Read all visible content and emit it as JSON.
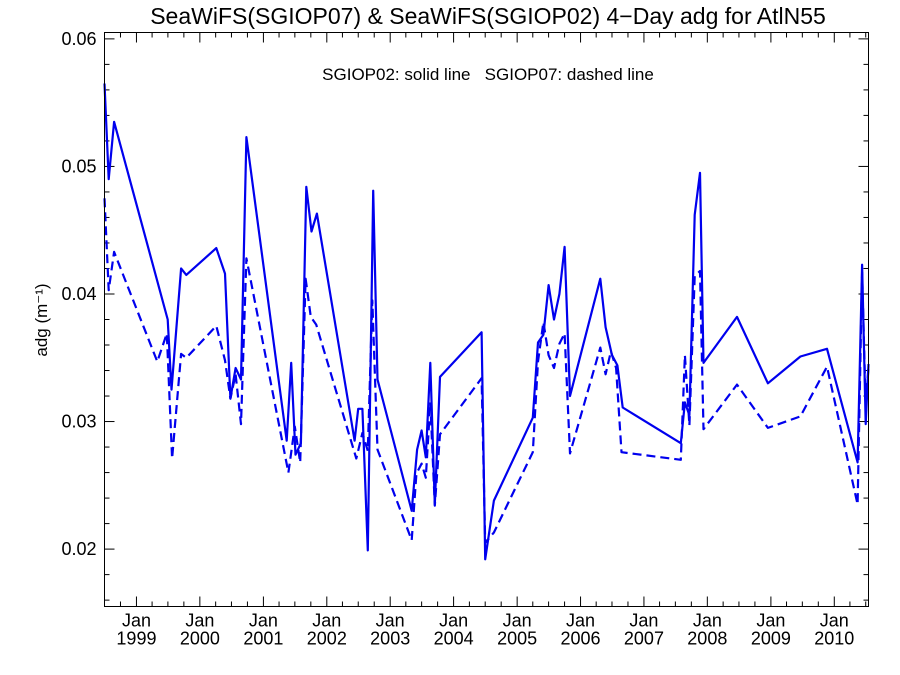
{
  "chart_data": {
    "type": "line",
    "title": "SeaWiFS(SGIOP07) & SeaWiFS(SGIOP02) 4−Day adg for AtlN55",
    "annotation": "SGIOP02: solid line   SGIOP07: dashed line",
    "ylabel": "adg (m⁻¹)",
    "xlabel": "",
    "xlim": [
      "1998-07-01",
      "2010-07-17"
    ],
    "ylim": [
      0.0155,
      0.0605
    ],
    "y_ticks": [
      "0.02",
      "0.03",
      "0.04",
      "0.05",
      "0.06"
    ],
    "y_tick_values": [
      0.02,
      0.03,
      0.04,
      0.05,
      0.06
    ],
    "x_ticks": [
      {
        "month": "Jan",
        "year": "1999",
        "date": "1999-01-01"
      },
      {
        "month": "Jan",
        "year": "2000",
        "date": "2000-01-01"
      },
      {
        "month": "Jan",
        "year": "2001",
        "date": "2001-01-01"
      },
      {
        "month": "Jan",
        "year": "2002",
        "date": "2002-01-01"
      },
      {
        "month": "Jan",
        "year": "2003",
        "date": "2003-01-01"
      },
      {
        "month": "Jan",
        "year": "2004",
        "date": "2004-01-01"
      },
      {
        "month": "Jan",
        "year": "2005",
        "date": "2005-01-01"
      },
      {
        "month": "Jan",
        "year": "2006",
        "date": "2006-01-01"
      },
      {
        "month": "Jan",
        "year": "2007",
        "date": "2007-01-01"
      },
      {
        "month": "Jan",
        "year": "2008",
        "date": "2008-01-01"
      },
      {
        "month": "Jan",
        "year": "2009",
        "date": "2009-01-01"
      },
      {
        "month": "Jan",
        "year": "2010",
        "date": "2010-01-01"
      }
    ],
    "grid": false,
    "color": "#0000ee",
    "series": [
      {
        "name": "SGIOP02",
        "style": "solid",
        "points": [
          [
            "1998-07-01",
            0.0565
          ],
          [
            "1998-07-25",
            0.049
          ],
          [
            "1998-08-25",
            0.0535
          ],
          [
            "1999-06-30",
            0.038
          ],
          [
            "1999-07-22",
            0.0325
          ],
          [
            "1999-09-15",
            0.042
          ],
          [
            "1999-10-15",
            0.0415
          ],
          [
            "2000-04-05",
            0.0436
          ],
          [
            "2000-05-25",
            0.0416
          ],
          [
            "2000-06-25",
            0.0318
          ],
          [
            "2000-07-25",
            0.0342
          ],
          [
            "2000-08-25",
            0.0333
          ],
          [
            "2000-09-25",
            0.0523
          ],
          [
            "2001-05-15",
            0.0285
          ],
          [
            "2001-06-10",
            0.0346
          ],
          [
            "2001-07-05",
            0.0274
          ],
          [
            "2001-08-05",
            0.0283
          ],
          [
            "2001-09-05",
            0.0484
          ],
          [
            "2001-10-05",
            0.0449
          ],
          [
            "2001-11-05",
            0.0463
          ],
          [
            "2002-06-10",
            0.0285
          ],
          [
            "2002-07-01",
            0.031
          ],
          [
            "2002-07-25",
            0.031
          ],
          [
            "2002-08-25",
            0.0199
          ],
          [
            "2002-09-25",
            0.0481
          ],
          [
            "2002-10-20",
            0.0333
          ],
          [
            "2003-05-05",
            0.023
          ],
          [
            "2003-06-05",
            0.0278
          ],
          [
            "2003-07-01",
            0.0293
          ],
          [
            "2003-07-25",
            0.0272
          ],
          [
            "2003-08-20",
            0.0346
          ],
          [
            "2003-09-15",
            0.0235
          ],
          [
            "2003-10-15",
            0.0335
          ],
          [
            "2004-06-10",
            0.037
          ],
          [
            "2004-07-01",
            0.0192
          ],
          [
            "2004-08-20",
            0.0238
          ],
          [
            "2005-04-01",
            0.0303
          ],
          [
            "2005-05-01",
            0.0362
          ],
          [
            "2005-06-01",
            0.0368
          ],
          [
            "2005-07-01",
            0.0407
          ],
          [
            "2005-08-01",
            0.038
          ],
          [
            "2005-09-01",
            0.04
          ],
          [
            "2005-10-01",
            0.0437
          ],
          [
            "2005-11-01",
            0.032
          ],
          [
            "2006-04-25",
            0.0412
          ],
          [
            "2006-05-25",
            0.0374
          ],
          [
            "2006-07-01",
            0.0352
          ],
          [
            "2006-08-01",
            0.0344
          ],
          [
            "2006-09-01",
            0.0311
          ],
          [
            "2007-08-01",
            0.0283
          ],
          [
            "2007-08-25",
            0.0315
          ],
          [
            "2007-09-20",
            0.0305
          ],
          [
            "2007-10-20",
            0.0462
          ],
          [
            "2007-11-20",
            0.0495
          ],
          [
            "2007-12-10",
            0.0346
          ],
          [
            "2008-06-20",
            0.0382
          ],
          [
            "2008-12-15",
            0.033
          ],
          [
            "2009-06-20",
            0.0351
          ],
          [
            "2009-11-20",
            0.0357
          ],
          [
            "2010-05-15",
            0.0268
          ],
          [
            "2010-06-10",
            0.0423
          ],
          [
            "2010-07-01",
            0.0298
          ],
          [
            "2010-07-17",
            0.0345
          ]
        ]
      },
      {
        "name": "SGIOP07",
        "style": "dashed",
        "points": [
          [
            "1998-07-01",
            0.0475
          ],
          [
            "1998-07-25",
            0.0403
          ],
          [
            "1998-08-25",
            0.0433
          ],
          [
            "1999-05-01",
            0.0347
          ],
          [
            "1999-06-25",
            0.0369
          ],
          [
            "1999-07-25",
            0.0271
          ],
          [
            "1999-09-15",
            0.0353
          ],
          [
            "1999-10-15",
            0.035
          ],
          [
            "2000-04-05",
            0.0375
          ],
          [
            "2000-05-25",
            0.0348
          ],
          [
            "2000-06-25",
            0.0318
          ],
          [
            "2000-07-25",
            0.0337
          ],
          [
            "2000-08-25",
            0.0298
          ],
          [
            "2000-09-25",
            0.0428
          ],
          [
            "2001-05-25",
            0.026
          ],
          [
            "2001-07-01",
            0.0296
          ],
          [
            "2001-08-01",
            0.0268
          ],
          [
            "2001-09-01",
            0.0412
          ],
          [
            "2001-10-01",
            0.0382
          ],
          [
            "2001-11-01",
            0.0376
          ],
          [
            "2002-06-20",
            0.0271
          ],
          [
            "2002-07-25",
            0.0291
          ],
          [
            "2002-08-25",
            0.0277
          ],
          [
            "2002-09-20",
            0.0395
          ],
          [
            "2002-10-20",
            0.0278
          ],
          [
            "2003-05-05",
            0.0207
          ],
          [
            "2003-06-01",
            0.0259
          ],
          [
            "2003-07-01",
            0.0267
          ],
          [
            "2003-07-25",
            0.0256
          ],
          [
            "2003-08-20",
            0.0315
          ],
          [
            "2003-09-15",
            0.0234
          ],
          [
            "2003-10-15",
            0.029
          ],
          [
            "2004-06-10",
            0.0334
          ],
          [
            "2004-07-01",
            0.0205
          ],
          [
            "2004-08-20",
            0.0213
          ],
          [
            "2005-04-01",
            0.0276
          ],
          [
            "2005-05-01",
            0.0347
          ],
          [
            "2005-06-01",
            0.0378
          ],
          [
            "2005-07-01",
            0.0352
          ],
          [
            "2005-08-01",
            0.0342
          ],
          [
            "2005-09-01",
            0.0361
          ],
          [
            "2005-10-01",
            0.0369
          ],
          [
            "2005-11-01",
            0.0275
          ],
          [
            "2006-04-25",
            0.0358
          ],
          [
            "2006-05-25",
            0.0337
          ],
          [
            "2006-06-25",
            0.0355
          ],
          [
            "2006-07-25",
            0.0342
          ],
          [
            "2006-08-25",
            0.0276
          ],
          [
            "2007-08-01",
            0.027
          ],
          [
            "2007-08-25",
            0.0352
          ],
          [
            "2007-09-20",
            0.0297
          ],
          [
            "2007-10-20",
            0.0414
          ],
          [
            "2007-11-20",
            0.0418
          ],
          [
            "2007-12-10",
            0.0294
          ],
          [
            "2008-06-20",
            0.0329
          ],
          [
            "2008-12-15",
            0.0295
          ],
          [
            "2009-06-20",
            0.0304
          ],
          [
            "2009-11-20",
            0.0343
          ],
          [
            "2010-05-15",
            0.0235
          ],
          [
            "2010-06-10",
            0.0417
          ],
          [
            "2010-07-01",
            0.0312
          ],
          [
            "2010-07-17",
            0.0343
          ]
        ]
      }
    ]
  }
}
